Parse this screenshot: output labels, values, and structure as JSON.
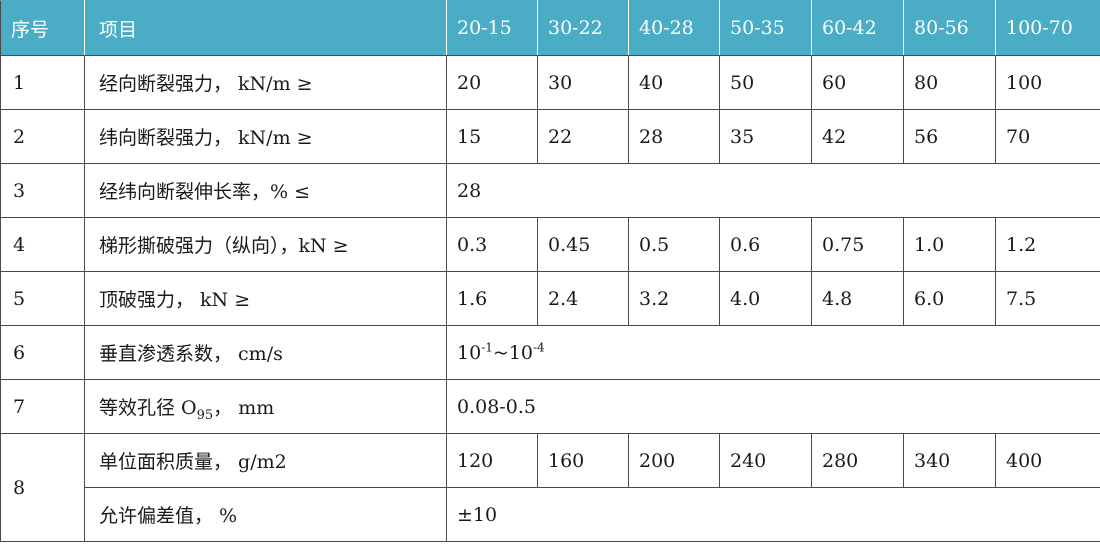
{
  "header": {
    "seq": "序号",
    "item": "项目",
    "grades": [
      "20-15",
      "30-22",
      "40-28",
      "50-35",
      "60-42",
      "80-56",
      "100-70"
    ]
  },
  "rows": [
    {
      "seq": "1",
      "item": "经向断裂强力， kN/m ≥",
      "values": [
        "20",
        "30",
        "40",
        "50",
        "60",
        "80",
        "100"
      ]
    },
    {
      "seq": "2",
      "item": "纬向断裂强力， kN/m ≥",
      "values": [
        "15",
        "22",
        "28",
        "35",
        "42",
        "56",
        "70"
      ]
    },
    {
      "seq": "3",
      "item": "经纬向断裂伸长率，% ≤",
      "merged": "28"
    },
    {
      "seq": "4",
      "item": "梯形撕破强力（纵向），kN ≥",
      "values": [
        "0.3",
        "0.45",
        "0.5",
        "0.6",
        "0.75",
        "1.0",
        "1.2"
      ]
    },
    {
      "seq": "5",
      "item": "顶破强力， kN ≥",
      "values": [
        "1.6",
        "2.4",
        "3.2",
        "4.0",
        "4.8",
        "6.0",
        "7.5"
      ]
    },
    {
      "seq": "6",
      "item": "垂直渗透系数， cm/s",
      "merged_parts": {
        "base1": "10",
        "exp1": "-1",
        "sep": "~",
        "base2": "10",
        "exp2": "-4"
      }
    },
    {
      "seq": "7",
      "item_parts": {
        "prefix": "等效孔径 O",
        "sub": "95",
        "suffix": "， mm"
      },
      "merged": "0.08-0.5"
    },
    {
      "seq": "8",
      "item": "单位面积质量， g/m2",
      "values": [
        "120",
        "160",
        "200",
        "240",
        "280",
        "340",
        "400"
      ]
    },
    {
      "item": "允许偏差值， %",
      "merged": "±10"
    }
  ],
  "colors": {
    "header_bg": "#4bacc6",
    "header_text": "#ffffff",
    "border": "#4a4a4a"
  }
}
